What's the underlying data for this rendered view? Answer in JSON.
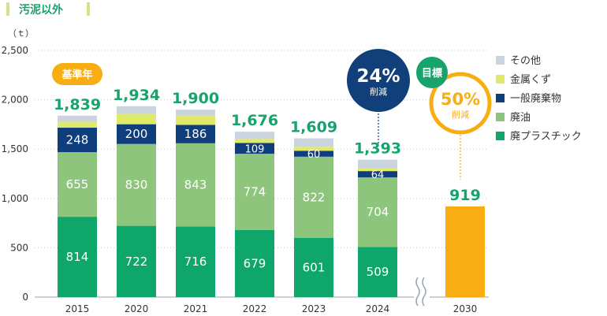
{
  "page_title": "汚泥以外",
  "unit_label": "（ｔ）",
  "colors": {
    "plastic": "#0ea66b",
    "oil": "#8ec57d",
    "general": "#0e3e7c",
    "metal": "#e1e96b",
    "other": "#c9d4de",
    "target": "#f8ae13",
    "total_label": "#17a36b",
    "badge_base": "#f8ae13",
    "badge_24": "#113f7a",
    "badge_goal": "#17a36b",
    "header_accent": "#cfe58b"
  },
  "badges": {
    "base_year": "基準年",
    "reduction_2024": {
      "value": "24%",
      "label": "削減"
    },
    "goal": "目標",
    "target_reduction": {
      "value": "50%",
      "label": "削減"
    }
  },
  "chart_data": {
    "type": "bar",
    "stacked": true,
    "categories": [
      "2015",
      "2020",
      "2021",
      "2022",
      "2023",
      "2024",
      "2030"
    ],
    "ylim": [
      0,
      2500
    ],
    "yticks": [
      0,
      500,
      1000,
      1500,
      2000,
      2500
    ],
    "ytick_labels": [
      "0",
      "500",
      "1,000",
      "1,500",
      "2,000",
      "2,500"
    ],
    "grid": true,
    "legend_position": "right",
    "series": [
      {
        "key": "plastic",
        "name": "廃プラスチック",
        "values": [
          814,
          722,
          716,
          679,
          601,
          509,
          null
        ]
      },
      {
        "key": "oil",
        "name": "廃油",
        "values": [
          655,
          830,
          843,
          774,
          822,
          704,
          null
        ]
      },
      {
        "key": "general",
        "name": "一般廃棄物",
        "values": [
          248,
          200,
          186,
          109,
          60,
          64,
          null
        ]
      },
      {
        "key": "metal",
        "name": "金属くず",
        "values": [
          60,
          105,
          95,
          40,
          40,
          30,
          null
        ]
      },
      {
        "key": "other",
        "name": "その他",
        "values": [
          62,
          77,
          60,
          74,
          86,
          86,
          null
        ]
      }
    ],
    "target": {
      "category": "2030",
      "value": 919,
      "label": "919"
    },
    "totals": [
      {
        "category": "2015",
        "label": "1,839"
      },
      {
        "category": "2020",
        "label": "1,934"
      },
      {
        "category": "2021",
        "label": "1,900"
      },
      {
        "category": "2022",
        "label": "1,676"
      },
      {
        "category": "2023",
        "label": "1,609"
      },
      {
        "category": "2024",
        "label": "1,393"
      }
    ],
    "visible_segment_labels": {
      "plastic": [
        "814",
        "722",
        "716",
        "679",
        "601",
        "509"
      ],
      "oil": [
        "655",
        "830",
        "843",
        "774",
        "822",
        "704"
      ],
      "general": [
        "248",
        "200",
        "186",
        "109",
        "60",
        "64"
      ]
    },
    "legend_order": [
      "other",
      "metal",
      "general",
      "oil",
      "plastic"
    ]
  }
}
